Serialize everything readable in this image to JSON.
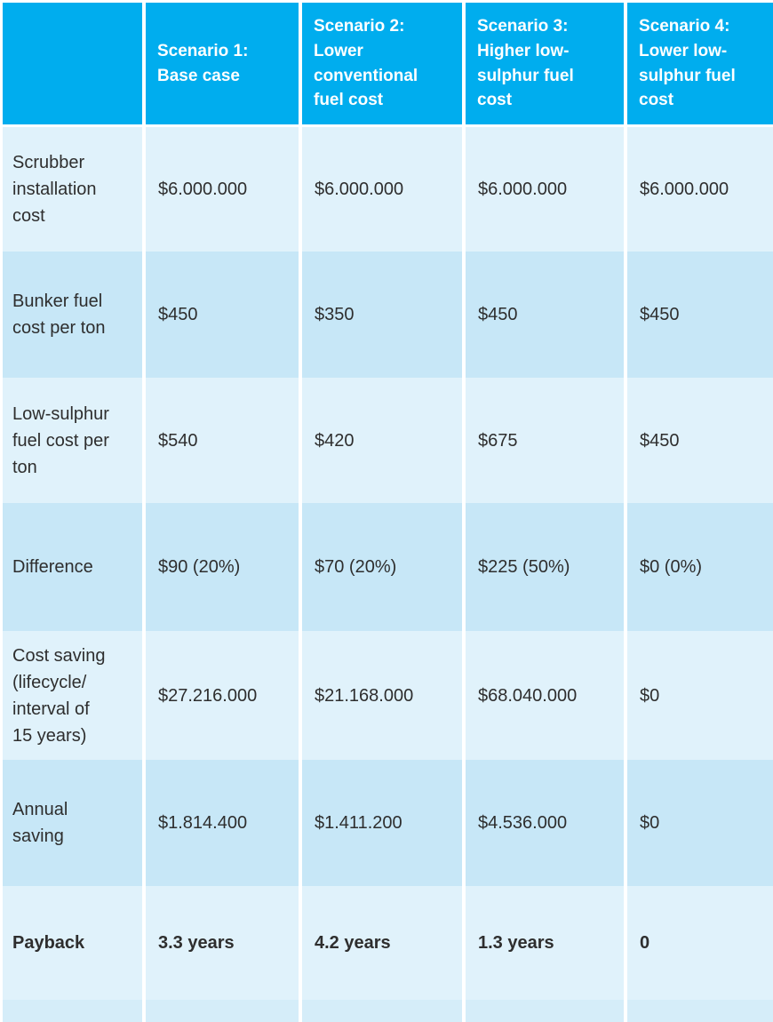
{
  "table": {
    "header": {
      "corner": "",
      "columns": [
        "Scenario 1:\nBase case",
        "Scenario 2:\nLower\nconventional\nfuel cost",
        "Scenario 3:\nHigher low-\nsulphur fuel\ncost",
        "Scenario 4:\nLower low-\nsulphur fuel\ncost"
      ]
    },
    "rows": [
      {
        "label": "Scrubber\ninstallation\ncost",
        "values": [
          "$6.000.000",
          "$6.000.000",
          "$6.000.000",
          "$6.000.000"
        ]
      },
      {
        "label": "Bunker fuel\ncost per ton",
        "values": [
          "$450",
          "$350",
          "$450",
          "$450"
        ]
      },
      {
        "label": "Low-sulphur\nfuel cost per\nton",
        "values": [
          "$540",
          "$420",
          "$675",
          "$450"
        ]
      },
      {
        "label": "Difference",
        "values": [
          "$90 (20%)",
          "$70 (20%)",
          "$225 (50%)",
          "$0 (0%)"
        ]
      },
      {
        "label": "Cost saving\n(lifecycle/\ninterval of\n15 years)",
        "values": [
          "$27.216.000",
          "$21.168.000",
          "$68.040.000",
          "$0"
        ]
      },
      {
        "label": "Annual\nsaving",
        "values": [
          "$1.814.400",
          "$1.411.200",
          "$4.536.000",
          "$0"
        ]
      },
      {
        "label": "Payback",
        "values": [
          "3.3 years",
          "4.2 years",
          "1.3 years",
          "0"
        ]
      }
    ]
  },
  "colors": {
    "header_bg": "#00ADEE",
    "header_text": "#FFFFFF",
    "row_light": "#E0F2FB",
    "row_dark": "#C7E7F7",
    "row_partial": "#D5EDF9",
    "text_dark": "#2E2E2E",
    "gap_white": "#FFFFFF"
  }
}
